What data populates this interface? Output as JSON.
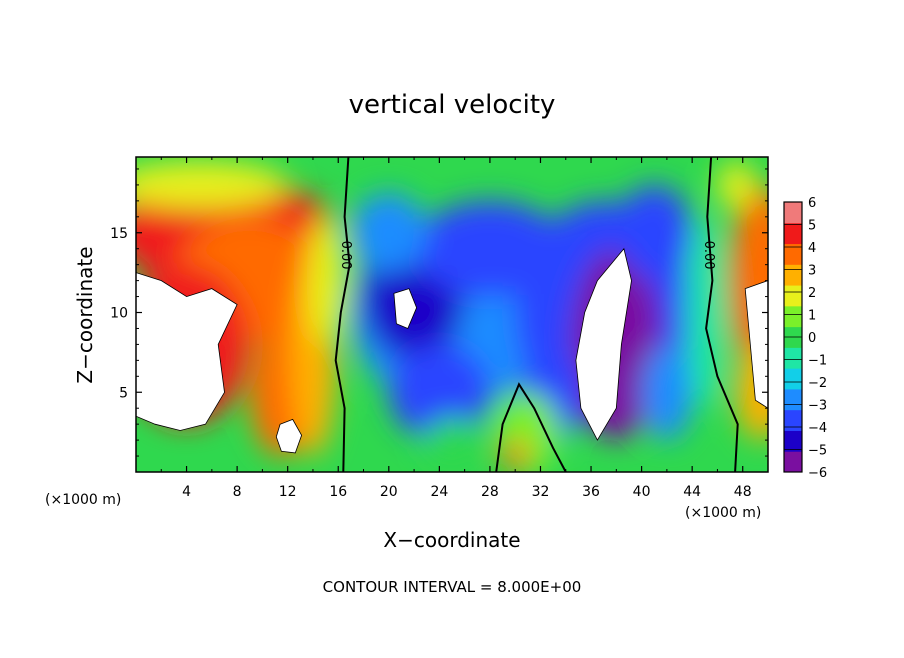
{
  "chart_data": {
    "type": "heatmap",
    "title": "vertical velocity",
    "xlabel": "X−coordinate",
    "ylabel": "Z−coordinate",
    "x_unit": "(×1000 m)",
    "y_unit": "(×1000 m)",
    "xlim": [
      0,
      50
    ],
    "ylim": [
      0,
      19.75
    ],
    "x_ticks": [
      4,
      8,
      12,
      16,
      20,
      24,
      28,
      32,
      36,
      40,
      44,
      48
    ],
    "x_tick_labels": [
      "4",
      "8",
      "12",
      "16",
      "20",
      "24",
      "28",
      "32",
      "36",
      "40",
      "44",
      "48"
    ],
    "y_ticks": [
      5,
      10,
      15
    ],
    "y_tick_labels": [
      "5",
      "10",
      "15"
    ],
    "colorbar": {
      "ticks": [
        6,
        5,
        4,
        3,
        2,
        1,
        0,
        -1,
        -2,
        -3,
        -4,
        -5,
        -6
      ],
      "tick_labels": [
        "6",
        "5",
        "4",
        "3",
        "2",
        "1",
        "0",
        "−1",
        "−2",
        "−3",
        "−4",
        "−5",
        "−6"
      ],
      "range": [
        -6,
        6
      ],
      "colors": [
        "#7a0fa0",
        "#1c00c8",
        "#2a45ff",
        "#1e8cff",
        "#12cfe8",
        "#1fe6a5",
        "#2fd84e",
        "#7af02a",
        "#e8f01c",
        "#ffb000",
        "#ff6a00",
        "#f01a1a",
        "#f07a7a"
      ]
    },
    "contour_labels": [
      "0.00",
      "0.00"
    ],
    "annotation": "CONTOUR INTERVAL = 8.000E+00",
    "regions": [
      {
        "x": 4,
        "z": 9,
        "value": 7
      },
      {
        "x": 12,
        "z": 2.2,
        "value": 7
      },
      {
        "x": 8,
        "z": 14,
        "value": 4.5
      },
      {
        "x": 21,
        "z": 11,
        "value": -7
      },
      {
        "x": 38,
        "z": 8.5,
        "value": -7
      },
      {
        "x": 26,
        "z": 14,
        "value": -4.5
      },
      {
        "x": 40,
        "z": 16,
        "value": -4.5
      },
      {
        "x": 49.5,
        "z": 10,
        "value": 7
      }
    ]
  }
}
